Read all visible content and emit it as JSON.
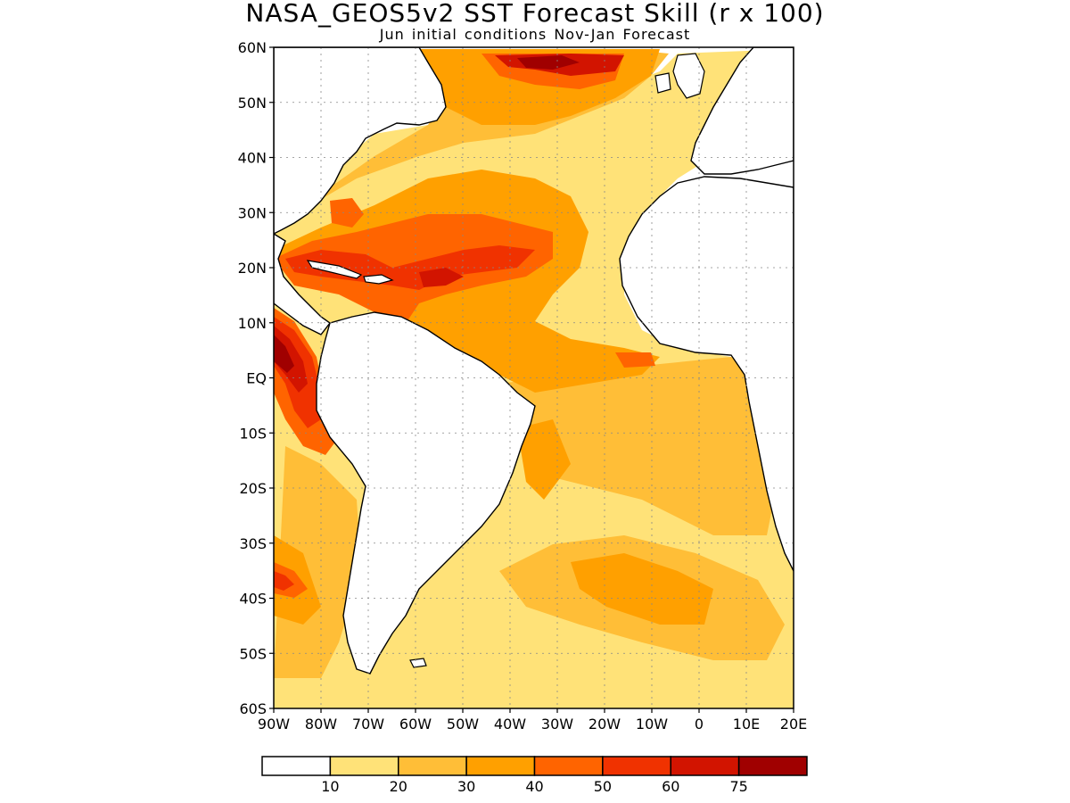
{
  "title": "NASA_GEOS5v2 SST Forecast Skill (r x 100)",
  "subtitle": "Jun initial conditions  Nov-Jan Forecast",
  "map": {
    "type": "filled-contour map",
    "region": "Atlantic Ocean",
    "lon_range": [
      -90,
      20
    ],
    "lat_range": [
      -60,
      60
    ],
    "lat_ticks": [
      {
        "value": 60,
        "label": "60N"
      },
      {
        "value": 50,
        "label": "50N"
      },
      {
        "value": 40,
        "label": "40N"
      },
      {
        "value": 30,
        "label": "30N"
      },
      {
        "value": 20,
        "label": "20N"
      },
      {
        "value": 10,
        "label": "10N"
      },
      {
        "value": 0,
        "label": "EQ"
      },
      {
        "value": -10,
        "label": "10S"
      },
      {
        "value": -20,
        "label": "20S"
      },
      {
        "value": -30,
        "label": "30S"
      },
      {
        "value": -40,
        "label": "40S"
      },
      {
        "value": -50,
        "label": "50S"
      },
      {
        "value": -60,
        "label": "60S"
      }
    ],
    "lon_ticks": [
      {
        "value": -90,
        "label": "90W"
      },
      {
        "value": -80,
        "label": "80W"
      },
      {
        "value": -70,
        "label": "70W"
      },
      {
        "value": -60,
        "label": "60W"
      },
      {
        "value": -50,
        "label": "50W"
      },
      {
        "value": -40,
        "label": "40W"
      },
      {
        "value": -30,
        "label": "30W"
      },
      {
        "value": -20,
        "label": "20W"
      },
      {
        "value": -10,
        "label": "10W"
      },
      {
        "value": 0,
        "label": "0"
      },
      {
        "value": 10,
        "label": "10E"
      },
      {
        "value": 20,
        "label": "20E"
      }
    ],
    "gridlines": "dotted"
  },
  "colorbar": {
    "levels": [
      "10",
      "20",
      "30",
      "40",
      "50",
      "60",
      "75"
    ],
    "colors": [
      "#ffffff",
      "#ffe278",
      "#ffbe37",
      "#ffa000",
      "#ff6400",
      "#f03200",
      "#d21400",
      "#a00000"
    ]
  }
}
